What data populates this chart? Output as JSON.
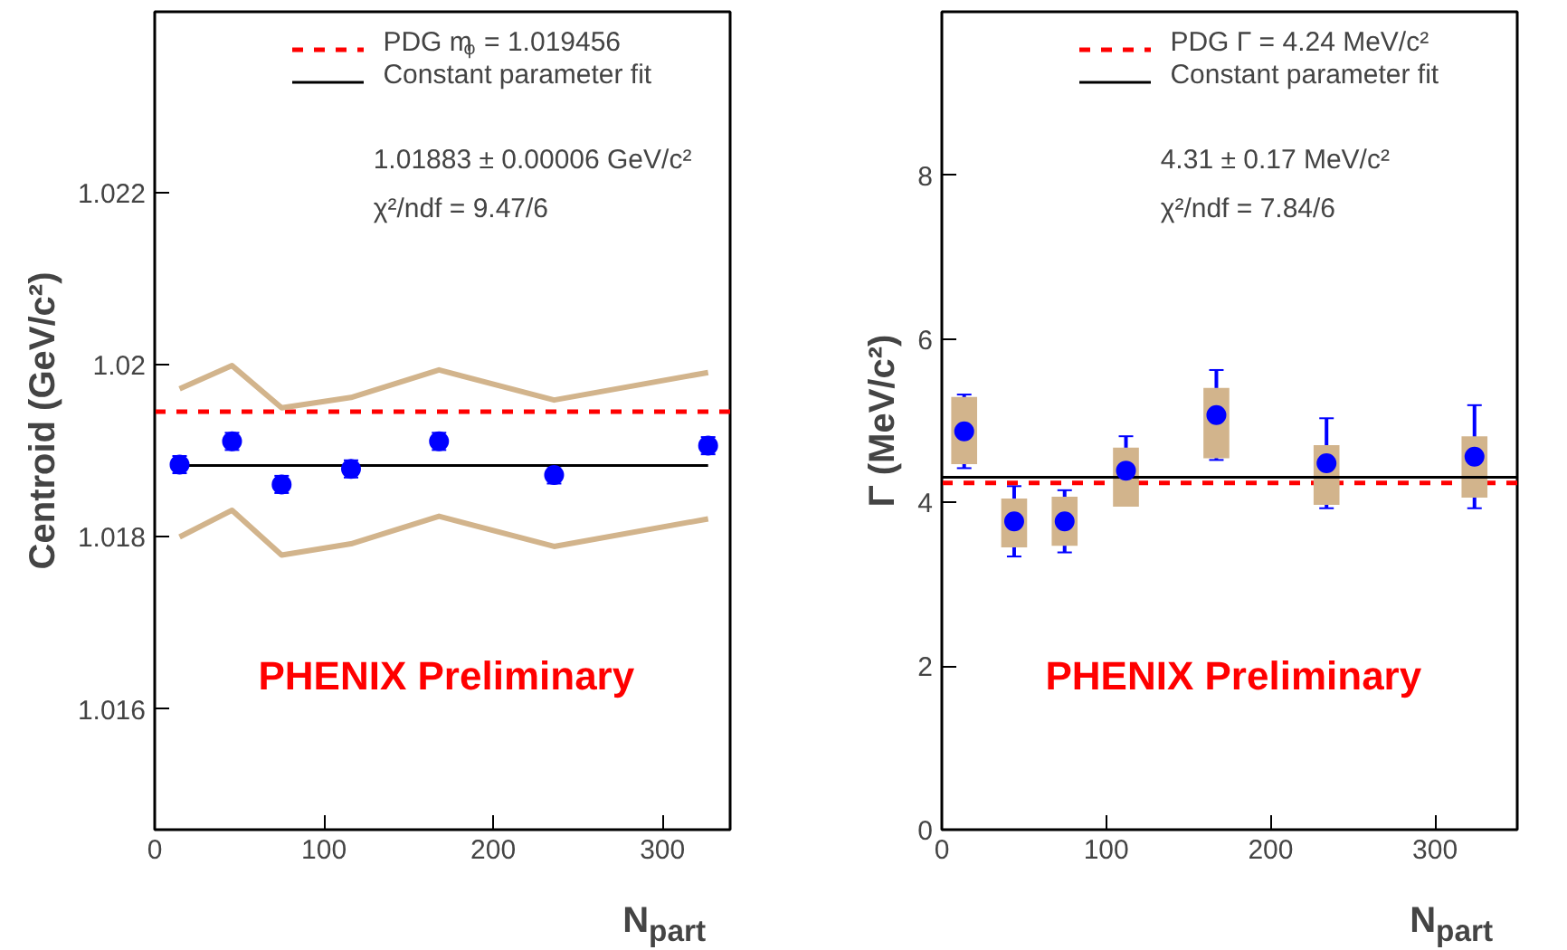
{
  "chart_data": [
    {
      "type": "scatter",
      "xlabel": "N$_{part}$",
      "ylabel": "Centroid (GeV/c²)",
      "xlim": [
        0,
        340
      ],
      "ylim": [
        1.0146,
        1.0241
      ],
      "xticks": [
        0,
        100,
        200,
        300
      ],
      "yticks": [
        1.016,
        1.018,
        1.02,
        1.022
      ],
      "legend": "top right",
      "series": [
        {
          "type": "line",
          "color": "#d2b48c",
          "x": [
            14.7,
            45.7,
            75,
            116,
            168,
            236,
            327
          ],
          "values": [
            1.01972,
            1.01999,
            1.0195,
            1.01962,
            1.01994,
            1.01959,
            1.01991
          ]
        },
        {
          "type": "line",
          "color": "#d2b48c",
          "x": [
            14.7,
            45.7,
            75,
            116,
            168,
            236,
            327
          ],
          "values": [
            1.018,
            1.01831,
            1.01779,
            1.01792,
            1.01824,
            1.01789,
            1.01821
          ]
        },
        {
          "type": "line",
          "name": "Constant parameter fit",
          "color": "#000000",
          "x": [
            14.7,
            327
          ],
          "values": [
            1.01883,
            1.01883
          ]
        },
        {
          "marker": "circle",
          "color": "#0000ff",
          "x": [
            14.7,
            45.7,
            75,
            116,
            168,
            236,
            327
          ],
          "values": [
            1.01884,
            1.01911,
            1.01861,
            1.01879,
            1.01911,
            1.01872,
            1.01906
          ],
          "errors": [
            0.0001,
            0.0001,
            0.0001,
            0.0001,
            0.0001,
            0.0001,
            0.0001
          ]
        }
      ],
      "ref_lines": [
        {
          "axis": "y",
          "value": 1.019456,
          "label": "PDG m$_{φ}$ = 1.019456",
          "color": "#ff0000",
          "line_style": "dashed"
        }
      ],
      "annotations": [
        "1.01883 ± 0.00006 GeV/c²",
        "χ²/ndf = 9.47/6",
        "PHENIX Preliminary"
      ]
    },
    {
      "type": "scatter",
      "xlabel": "N$_{part}$",
      "ylabel": "Γ (MeV/c²)",
      "xlim": [
        0,
        350
      ],
      "ylim": [
        0,
        10
      ],
      "xticks": [
        0,
        100,
        200,
        300
      ],
      "yticks": [
        0,
        2,
        4,
        6,
        8
      ],
      "legend": "top right",
      "series": [
        {
          "type": "bar",
          "color": "#d2b48c",
          "x": [
            13.6,
            44,
            74.7,
            112,
            167,
            234,
            324
          ],
          "base": [
            4.47,
            3.45,
            3.47,
            3.95,
            4.54,
            3.97,
            4.06
          ],
          "values": [
            0.82,
            0.6,
            0.6,
            0.72,
            0.86,
            0.73,
            0.75
          ]
        },
        {
          "type": "line",
          "name": "Constant parameter fit",
          "color": "#000000",
          "x": [
            0,
            350
          ],
          "values": [
            4.31,
            4.31
          ]
        },
        {
          "marker": "circle",
          "color": "#0000ff",
          "x": [
            13.6,
            44,
            74.7,
            112,
            167,
            234,
            324
          ],
          "values": [
            4.87,
            3.77,
            3.77,
            4.39,
            5.07,
            4.48,
            4.56
          ],
          "errors": [
            0.45,
            0.43,
            0.38,
            0.42,
            0.55,
            0.55,
            0.63
          ]
        }
      ],
      "ref_lines": [
        {
          "axis": "y",
          "value": 4.24,
          "label": "PDG Γ = 4.24 MeV/c²",
          "color": "#ff0000",
          "line_style": "dashed"
        }
      ],
      "annotations": [
        "4.31 ± 0.17 MeV/c²",
        "χ²/ndf = 7.84/6",
        "PHENIX Preliminary"
      ]
    }
  ]
}
